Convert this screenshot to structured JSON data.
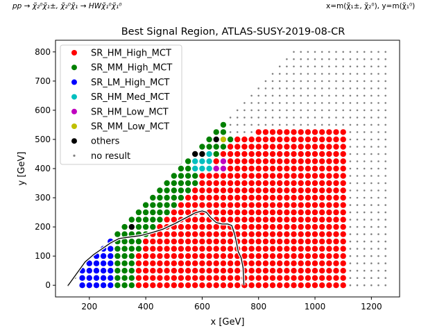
{
  "header": {
    "process": "pp → χ̃₂⁰χ̃₁±, χ̃₂⁰χ̃₁ → HWχ̃₁⁰χ̃₁⁰",
    "axes_def": "x=m(χ̃₁±, χ̃₂⁰), y=m(χ̃₁⁰)"
  },
  "chart_data": {
    "type": "scatter",
    "title": "Best Signal Region, ATLAS-SUSY-2019-08-CR",
    "xlabel": "x [GeV]",
    "ylabel": "y [GeV]",
    "xlim": [
      80,
      1300
    ],
    "ylim": [
      -40,
      840
    ],
    "xticks": [
      200,
      400,
      600,
      800,
      1000,
      1200
    ],
    "yticks": [
      0,
      100,
      200,
      300,
      400,
      500,
      600,
      700,
      800
    ],
    "grid": false,
    "legend_position": "top-left",
    "grid_step": 25,
    "series": [
      {
        "name": "SR_HM_High_MCT",
        "color": "#ff0000"
      },
      {
        "name": "SR_MM_High_MCT",
        "color": "#008000"
      },
      {
        "name": "SR_LM_High_MCT",
        "color": "#0000ff"
      },
      {
        "name": "SR_HM_Med_MCT",
        "color": "#00bfbf"
      },
      {
        "name": "SR_HM_Low_MCT",
        "color": "#bf00bf"
      },
      {
        "name": "SR_MM_Low_MCT",
        "color": "#bfbf00"
      },
      {
        "name": "others",
        "color": "#000000"
      },
      {
        "name": "no result",
        "color": "#808080"
      }
    ],
    "exclusion_contour": [
      [
        125,
        0
      ],
      [
        155,
        40
      ],
      [
        185,
        80
      ],
      [
        215,
        105
      ],
      [
        245,
        125
      ],
      [
        275,
        145
      ],
      [
        305,
        160
      ],
      [
        340,
        165
      ],
      [
        380,
        170
      ],
      [
        420,
        180
      ],
      [
        460,
        192
      ],
      [
        500,
        210
      ],
      [
        540,
        230
      ],
      [
        575,
        248
      ],
      [
        600,
        255
      ],
      [
        615,
        250
      ],
      [
        630,
        232
      ],
      [
        650,
        215
      ],
      [
        670,
        210
      ],
      [
        690,
        210
      ],
      [
        705,
        205
      ],
      [
        715,
        175
      ],
      [
        722,
        145
      ],
      [
        728,
        115
      ],
      [
        738,
        95
      ],
      [
        745,
        60
      ],
      [
        748,
        0
      ]
    ],
    "layout_note_removed": true
  }
}
